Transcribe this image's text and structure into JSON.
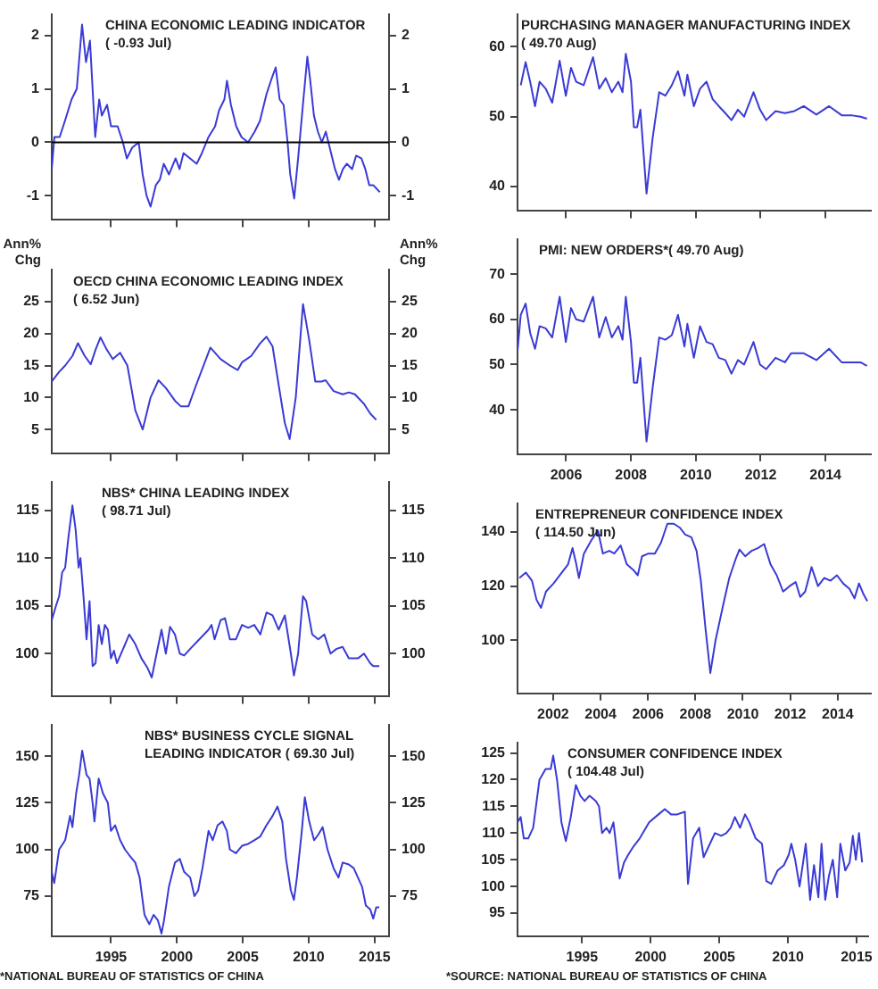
{
  "chart_data": [
    {
      "type": "line",
      "title": "CHINA ECONOMIC LEADING INDICATOR",
      "subtitle": "( -0.93 Jul)",
      "xlim": [
        1990.5,
        2016.1
      ],
      "xticks": [
        1995,
        2000,
        2005,
        2010,
        2015
      ],
      "ylim": [
        -1.45,
        2.4
      ],
      "yticks": [
        -1,
        0,
        1,
        2
      ],
      "y2lim": [
        -1.45,
        2.4
      ],
      "y2ticks": [
        -1,
        0,
        1,
        2
      ],
      "tick_labels": "y",
      "grid": false,
      "legend": false,
      "marker": "none",
      "ref_lines": [
        {
          "axis": "y",
          "value": 0,
          "color": "#000000"
        }
      ],
      "x": [
        1990.5,
        1990.7,
        1991.1,
        1991.5,
        1992.0,
        1992.4,
        1992.8,
        1993.1,
        1993.4,
        1993.6,
        1993.8,
        1994.1,
        1994.3,
        1994.7,
        1995.0,
        1995.5,
        1995.9,
        1996.2,
        1996.6,
        1997.1,
        1997.4,
        1997.7,
        1998.0,
        1998.4,
        1998.7,
        1999.0,
        1999.4,
        1999.9,
        2000.2,
        2000.5,
        2001.0,
        2001.5,
        2001.9,
        2002.4,
        2002.9,
        2003.2,
        2003.6,
        2003.8,
        2004.1,
        2004.5,
        2004.9,
        2005.4,
        2005.9,
        2006.3,
        2006.8,
        2007.2,
        2007.5,
        2007.8,
        2008.1,
        2008.4,
        2008.6,
        2008.9,
        2009.2,
        2009.6,
        2009.9,
        2010.1,
        2010.4,
        2010.7,
        2011.0,
        2011.3,
        2011.7,
        2012.0,
        2012.3,
        2012.6,
        2012.9,
        2013.3,
        2013.6,
        2014.0,
        2014.3,
        2014.6,
        2014.9,
        2015.4
      ],
      "series": [
        {
          "color": "#3a3ad6",
          "values": [
            -0.5,
            0.1,
            0.1,
            0.4,
            0.8,
            1.0,
            2.2,
            1.5,
            1.9,
            1.0,
            0.1,
            0.8,
            0.5,
            0.7,
            0.3,
            0.3,
            0.0,
            -0.3,
            -0.1,
            0.0,
            -0.6,
            -1.0,
            -1.2,
            -0.8,
            -0.7,
            -0.4,
            -0.6,
            -0.3,
            -0.5,
            -0.2,
            -0.3,
            -0.4,
            -0.2,
            0.1,
            0.3,
            0.6,
            0.8,
            1.15,
            0.7,
            0.3,
            0.1,
            0.0,
            0.2,
            0.4,
            0.9,
            1.2,
            1.4,
            0.8,
            0.7,
            0.0,
            -0.6,
            -1.05,
            -0.3,
            0.8,
            1.6,
            1.2,
            0.5,
            0.2,
            0.0,
            0.2,
            -0.2,
            -0.5,
            -0.7,
            -0.5,
            -0.4,
            -0.5,
            -0.25,
            -0.3,
            -0.5,
            -0.8,
            -0.8,
            -0.93
          ]
        }
      ]
    },
    {
      "type": "line",
      "title": "OECD CHINA ECONOMIC LEADING INDEX",
      "subtitle": "( 6.52 Jun)",
      "ylabel": "Ann% Chg",
      "y2label": "Ann% Chg",
      "xlim": [
        1990.5,
        2016.1
      ],
      "xticks": [
        1995,
        2000,
        2005,
        2010,
        2015
      ],
      "ylim": [
        1.2,
        30
      ],
      "yticks": [
        5,
        10,
        15,
        20,
        25
      ],
      "y2lim": [
        1.2,
        30
      ],
      "y2ticks": [
        5,
        10,
        15,
        20,
        25
      ],
      "tick_labels": "y",
      "grid": false,
      "legend": false,
      "marker": "none",
      "x": [
        1990.5,
        1991.06,
        1991.52,
        1992.07,
        1992.49,
        1993.0,
        1993.46,
        1993.83,
        1994.2,
        1994.67,
        1995.13,
        1995.69,
        1996.24,
        1996.84,
        1997.4,
        1998.0,
        1998.6,
        1999.16,
        1999.85,
        2000.31,
        2000.87,
        2001.47,
        2002.54,
        2003.32,
        2004.02,
        2004.62,
        2004.94,
        2005.64,
        2006.33,
        2006.8,
        2007.26,
        2007.72,
        2008.19,
        2008.56,
        2009.02,
        2009.57,
        2010.04,
        2010.5,
        2010.96,
        2011.29,
        2011.89,
        2012.58,
        2013.05,
        2013.51,
        2014.2,
        2014.67,
        2015.13
      ],
      "series": [
        {
          "color": "#3a3ad6",
          "values": [
            12.5,
            14,
            15,
            16.5,
            18.5,
            16.5,
            15.2,
            17.5,
            19.4,
            17.5,
            16,
            17,
            15,
            8,
            5,
            10,
            12.7,
            11.5,
            9.5,
            8.6,
            8.6,
            12,
            17.8,
            16,
            15,
            14.3,
            15.5,
            16.5,
            18.5,
            19.5,
            18,
            12,
            6,
            3.5,
            10,
            24.6,
            19,
            12.5,
            12.5,
            12.7,
            11,
            10.5,
            10.8,
            10.5,
            9,
            7.5,
            6.5
          ]
        }
      ]
    },
    {
      "type": "line",
      "title": "NBS* CHINA LEADING INDEX",
      "subtitle": "( 98.71 Jul)",
      "xlim": [
        1990.5,
        2016.1
      ],
      "xticks": [
        1995,
        2000,
        2005,
        2010,
        2015
      ],
      "ylim": [
        95.5,
        118
      ],
      "yticks": [
        100,
        105,
        110,
        115
      ],
      "y2lim": [
        95.5,
        118
      ],
      "y2ticks": [
        100,
        105,
        110,
        115
      ],
      "tick_labels": "y",
      "grid": false,
      "legend": false,
      "marker": "none",
      "x": [
        1990.5,
        1990.82,
        1991.06,
        1991.29,
        1991.52,
        1991.75,
        1992.07,
        1992.31,
        1992.54,
        1992.68,
        1992.91,
        1993.14,
        1993.37,
        1993.6,
        1993.83,
        1994.06,
        1994.3,
        1994.53,
        1994.76,
        1994.99,
        1995.22,
        1995.45,
        1995.92,
        1996.38,
        1996.84,
        1997.31,
        1997.77,
        1998.09,
        1998.46,
        1998.83,
        1999.16,
        1999.48,
        1999.85,
        2000.22,
        2000.55,
        2001.01,
        2001.7,
        2002.4,
        2002.63,
        2002.86,
        2003.32,
        2003.65,
        2004.02,
        2004.48,
        2004.94,
        2005.41,
        2005.87,
        2006.33,
        2006.8,
        2007.26,
        2007.72,
        2008.19,
        2008.65,
        2008.88,
        2009.2,
        2009.57,
        2009.81,
        2010.27,
        2010.73,
        2011.19,
        2011.66,
        2012.12,
        2012.58,
        2013.05,
        2013.74,
        2014.2,
        2014.67,
        2014.9,
        2015.36
      ],
      "series": [
        {
          "color": "#3a3ad6",
          "values": [
            103.5,
            105,
            106,
            108.5,
            109,
            112,
            115.5,
            113,
            109,
            110,
            106,
            101.5,
            105.5,
            98.7,
            99,
            103,
            101,
            103,
            102.5,
            99.5,
            100.3,
            99,
            100.5,
            102,
            101,
            99.5,
            98.5,
            97.5,
            100,
            102.5,
            100,
            102.8,
            102,
            100,
            99.8,
            100.5,
            101.5,
            102.5,
            103,
            101.5,
            103.5,
            103.7,
            101.5,
            101.5,
            103,
            102.7,
            103,
            102,
            104.3,
            104,
            102.5,
            104,
            100,
            97.7,
            100,
            106,
            105.5,
            102,
            101.5,
            102,
            100,
            100.5,
            100.7,
            99.5,
            99.5,
            100,
            99,
            98.7,
            98.7
          ]
        }
      ]
    },
    {
      "type": "line",
      "title": "NBS* BUSINESS CYCLE SIGNAL",
      "subtitle": "LEADING INDICATOR ( 69.30 Jul)",
      "annotations": [
        "*NATIONAL BUREAU OF STATISTICS OF CHINA"
      ],
      "xlim": [
        1990.5,
        2016.1
      ],
      "xticks": [
        1995,
        2000,
        2005,
        2010,
        2015
      ],
      "ylim": [
        53.6,
        167
      ],
      "yticks": [
        75,
        100,
        125,
        150
      ],
      "y2lim": [
        53.6,
        167
      ],
      "y2ticks": [
        75,
        100,
        125,
        150
      ],
      "grid": false,
      "legend": false,
      "marker": "none",
      "x": [
        1990.5,
        1990.69,
        1991.06,
        1991.52,
        1991.89,
        1992.07,
        1992.35,
        1992.58,
        1992.81,
        1993.14,
        1993.37,
        1993.6,
        1993.74,
        1994.06,
        1994.39,
        1994.76,
        1994.99,
        1995.31,
        1995.69,
        1996.06,
        1996.38,
        1996.84,
        1997.17,
        1997.54,
        1997.91,
        1998.23,
        1998.56,
        1998.83,
        1999.02,
        1999.39,
        1999.85,
        2000.22,
        2000.55,
        2001.01,
        2001.33,
        2001.61,
        2001.94,
        2002.4,
        2002.72,
        2003.09,
        2003.46,
        2003.79,
        2004.02,
        2004.48,
        2004.94,
        2005.41,
        2005.87,
        2006.33,
        2006.8,
        2007.26,
        2007.63,
        2008.0,
        2008.28,
        2008.65,
        2008.88,
        2009.11,
        2009.48,
        2009.71,
        2010.04,
        2010.41,
        2010.73,
        2011.06,
        2011.43,
        2011.89,
        2012.26,
        2012.58,
        2013.05,
        2013.42,
        2013.74,
        2014.06,
        2014.34,
        2014.67,
        2014.9,
        2015.13,
        2015.36
      ],
      "series": [
        {
          "color": "#3a3ad6",
          "values": [
            88,
            82,
            100,
            105,
            118,
            112,
            130,
            140,
            153,
            140,
            138,
            125,
            115,
            138,
            130,
            125,
            110,
            113,
            105,
            100,
            97,
            93,
            85,
            65,
            60,
            65,
            62,
            55,
            62,
            80,
            93,
            95,
            88,
            85,
            75,
            78,
            90,
            110,
            105,
            113,
            115,
            110,
            100,
            98,
            102,
            103,
            105,
            107,
            113,
            118,
            123,
            115,
            95,
            78,
            73,
            85,
            110,
            128,
            115,
            105,
            108,
            112,
            100,
            90,
            85,
            93,
            92,
            90,
            85,
            80,
            70,
            68,
            63,
            69,
            69
          ]
        }
      ]
    },
    {
      "type": "line",
      "title": "PURCHASING MANAGER MANUFACTURING INDEX",
      "subtitle": "( 49.70 Aug)",
      "xlim": [
        2004.5,
        2015.4
      ],
      "xticks": [
        2006,
        2008,
        2010,
        2012,
        2014
      ],
      "ylim": [
        36.5,
        64.7
      ],
      "yticks": [
        40,
        50,
        60
      ],
      "tick_labels": "y",
      "grid": false,
      "legend": false,
      "marker": "none",
      "x": [
        2004.6,
        2004.75,
        2004.89,
        2005.04,
        2005.18,
        2005.37,
        2005.57,
        2005.8,
        2005.99,
        2006.15,
        2006.31,
        2006.54,
        2006.83,
        2007.02,
        2007.22,
        2007.41,
        2007.61,
        2007.74,
        2007.84,
        2008.0,
        2008.09,
        2008.19,
        2008.29,
        2008.48,
        2008.67,
        2008.87,
        2009.06,
        2009.26,
        2009.45,
        2009.65,
        2009.74,
        2009.94,
        2010.13,
        2010.33,
        2010.52,
        2010.71,
        2010.91,
        2011.1,
        2011.3,
        2011.49,
        2011.78,
        2011.98,
        2012.17,
        2012.46,
        2012.75,
        2013.04,
        2013.33,
        2013.72,
        2014.11,
        2014.5,
        2014.79,
        2015.08,
        2015.28
      ],
      "series": [
        {
          "color": "#3a3ad6",
          "values": [
            54.5,
            57.8,
            55,
            51.5,
            55,
            54,
            52,
            58,
            53,
            57,
            55,
            54.5,
            58.5,
            54,
            55.5,
            53.5,
            55,
            53.5,
            59,
            55,
            48.5,
            48.5,
            51,
            39,
            47,
            53.5,
            53,
            54.5,
            56.5,
            53,
            56,
            51.5,
            54,
            55,
            52.5,
            51.5,
            50.5,
            49.5,
            51,
            50,
            53.5,
            51,
            49.5,
            50.8,
            50.5,
            50.8,
            51.5,
            50.3,
            51.5,
            50.2,
            50.2,
            50,
            49.7
          ]
        }
      ]
    },
    {
      "type": "line",
      "title": "PMI: NEW ORDERS*( 49.70 Aug)",
      "xlim": [
        2004.5,
        2015.4
      ],
      "xticks": [
        2006,
        2008,
        2010,
        2012,
        2014
      ],
      "ylim": [
        30.2,
        77.8
      ],
      "yticks": [
        40,
        50,
        60,
        70
      ],
      "grid": false,
      "legend": false,
      "marker": "none",
      "x": [
        2004.5,
        2004.6,
        2004.75,
        2004.89,
        2005.04,
        2005.18,
        2005.37,
        2005.57,
        2005.8,
        2005.99,
        2006.15,
        2006.31,
        2006.54,
        2006.83,
        2007.02,
        2007.22,
        2007.41,
        2007.61,
        2007.74,
        2007.84,
        2008.0,
        2008.09,
        2008.19,
        2008.29,
        2008.48,
        2008.67,
        2008.87,
        2009.06,
        2009.26,
        2009.45,
        2009.65,
        2009.74,
        2009.94,
        2010.13,
        2010.33,
        2010.52,
        2010.71,
        2010.91,
        2011.1,
        2011.3,
        2011.49,
        2011.78,
        2011.98,
        2012.17,
        2012.46,
        2012.75,
        2012.94,
        2013.33,
        2013.72,
        2014.11,
        2014.5,
        2014.89,
        2015.08,
        2015.28
      ],
      "series": [
        {
          "color": "#3a3ad6",
          "values": [
            53,
            61,
            63.5,
            57,
            53.5,
            58.5,
            58,
            56,
            65,
            55,
            62.5,
            60,
            59.5,
            65,
            56,
            60.5,
            56,
            58.5,
            55.5,
            65,
            55,
            46,
            46,
            51.5,
            33,
            45,
            56,
            55.5,
            56.5,
            61,
            54,
            59,
            51.5,
            58.5,
            55,
            54.5,
            51.5,
            51,
            48,
            51,
            50,
            55,
            50,
            49,
            51.5,
            50.5,
            52.5,
            52.5,
            51,
            53.5,
            50.5,
            50.5,
            50.5,
            49.7
          ]
        }
      ]
    },
    {
      "type": "line",
      "title": "ENTREPRENEUR CONFIDENCE INDEX",
      "subtitle": "( 114.50 Jun)",
      "xlim": [
        2000.5,
        2015.4
      ],
      "xticks": [
        2002,
        2004,
        2006,
        2008,
        2010,
        2012,
        2014
      ],
      "ylim": [
        80.5,
        150.6
      ],
      "yticks": [
        100,
        120,
        140
      ],
      "grid": false,
      "legend": false,
      "marker": "none",
      "x": [
        2000.58,
        2000.85,
        2001.11,
        2001.3,
        2001.49,
        2001.7,
        2002.02,
        2002.37,
        2002.63,
        2002.82,
        2002.98,
        2003.09,
        2003.3,
        2003.62,
        2003.89,
        2004.1,
        2004.37,
        2004.58,
        2004.85,
        2005.11,
        2005.38,
        2005.57,
        2005.75,
        2006.02,
        2006.29,
        2006.55,
        2006.82,
        2007.09,
        2007.35,
        2007.57,
        2007.83,
        2008.05,
        2008.23,
        2008.42,
        2008.63,
        2008.85,
        2009.17,
        2009.43,
        2009.7,
        2009.86,
        2010.1,
        2010.37,
        2010.63,
        2010.9,
        2011.17,
        2011.43,
        2011.7,
        2011.97,
        2012.23,
        2012.42,
        2012.63,
        2012.9,
        2013.17,
        2013.43,
        2013.7,
        2013.97,
        2014.23,
        2014.5,
        2014.71,
        2014.9,
        2015.09,
        2015.25
      ],
      "series": [
        {
          "color": "#3a3ad6",
          "values": [
            123,
            125,
            122,
            115,
            112,
            118,
            121,
            125,
            128,
            134,
            128,
            123,
            132,
            137,
            140.5,
            132,
            133,
            132,
            135,
            128,
            126,
            124,
            131,
            132,
            132,
            136,
            143,
            143,
            141.5,
            139,
            138,
            133,
            122,
            105,
            88,
            100,
            113,
            123,
            130,
            133.5,
            131,
            133,
            134,
            135.5,
            128,
            124,
            118,
            120,
            121.5,
            116,
            118,
            127,
            120,
            123,
            122,
            124,
            121,
            119,
            115.5,
            121,
            117,
            114.5
          ]
        }
      ]
    },
    {
      "type": "line",
      "title": "CONSUMER CONFIDENCE INDEX",
      "subtitle": "( 104.48 Jul)",
      "annotations": [
        "*SOURCE: NATIONAL BUREAU OF STATISTICS OF CHINA"
      ],
      "xlim": [
        1990.3,
        2015.85
      ],
      "xticks": [
        1995,
        2000,
        2005,
        2010,
        2015
      ],
      "ylim": [
        90.7,
        127
      ],
      "yticks": [
        95,
        100,
        105,
        110,
        115,
        120,
        125
      ],
      "grid": false,
      "legend": false,
      "marker": "none",
      "x": [
        1990.3,
        1990.53,
        1990.76,
        1991.08,
        1991.44,
        1991.9,
        1992.35,
        1992.72,
        1992.9,
        1993.18,
        1993.5,
        1993.82,
        1994.18,
        1994.55,
        1994.87,
        1995.19,
        1995.55,
        1996.01,
        1996.24,
        1996.46,
        1996.78,
        1997.01,
        1997.29,
        1997.47,
        1997.74,
        1998.06,
        1998.38,
        1998.75,
        1999.2,
        1999.89,
        2000.57,
        2001.03,
        2001.49,
        2001.94,
        2002.49,
        2002.72,
        2003.09,
        2003.54,
        2003.86,
        2004.23,
        2004.68,
        2005.14,
        2005.51,
        2005.83,
        2006.14,
        2006.51,
        2006.88,
        2007.19,
        2007.65,
        2008.11,
        2008.43,
        2008.79,
        2009.25,
        2009.71,
        2010.07,
        2010.25,
        2010.53,
        2010.85,
        2011.08,
        2011.3,
        2011.62,
        2011.9,
        2012.22,
        2012.45,
        2012.72,
        2012.99,
        2013.27,
        2013.59,
        2013.82,
        2014.18,
        2014.5,
        2014.73,
        2014.95,
        2015.18,
        2015.41
      ],
      "series": [
        {
          "color": "#3a3ad6",
          "values": [
            112,
            113,
            109,
            109,
            111,
            120,
            122,
            122,
            124.5,
            120,
            112,
            108.5,
            113,
            119,
            117,
            116,
            117,
            116,
            115,
            110,
            111,
            110,
            112,
            108,
            101.5,
            104.5,
            106,
            107.5,
            109,
            112,
            113.5,
            114.5,
            113.5,
            113.5,
            114,
            100.5,
            109,
            111,
            105.5,
            107.5,
            110,
            109.5,
            110,
            111,
            113,
            111,
            113.5,
            112,
            109,
            108,
            101,
            100.5,
            103,
            104,
            106,
            108,
            105,
            100,
            104,
            108,
            97.5,
            104,
            98,
            108,
            97.5,
            102,
            105,
            98,
            108,
            103,
            104.5,
            109.5,
            105,
            110,
            104.5
          ]
        }
      ]
    }
  ]
}
